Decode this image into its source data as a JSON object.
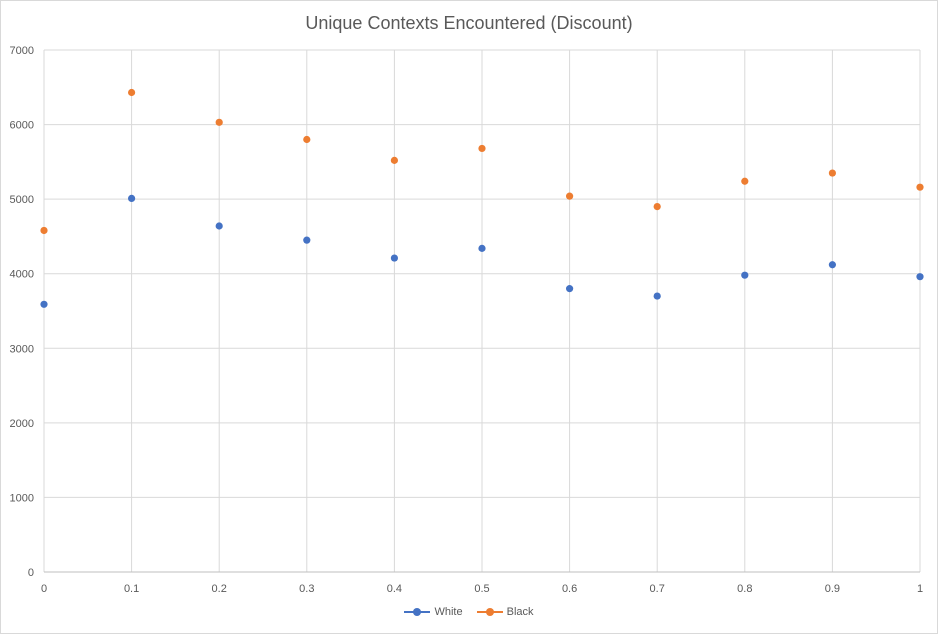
{
  "chart_data": {
    "type": "scatter",
    "title": "Unique Contexts Encountered (Discount)",
    "xlabel": "",
    "ylabel": "",
    "xlim": [
      0,
      1
    ],
    "ylim": [
      0,
      7000
    ],
    "x_ticks": [
      "0",
      "0.1",
      "0.2",
      "0.3",
      "0.4",
      "0.5",
      "0.6",
      "0.7",
      "0.8",
      "0.9",
      "1"
    ],
    "y_ticks": [
      "0",
      "1000",
      "2000",
      "3000",
      "4000",
      "5000",
      "6000",
      "7000"
    ],
    "grid": true,
    "legend_position": "bottom",
    "x": [
      0,
      0.1,
      0.2,
      0.3,
      0.4,
      0.5,
      0.6,
      0.7,
      0.8,
      0.9,
      1
    ],
    "series": [
      {
        "name": "White",
        "color": "#4472c4",
        "values": [
          3590,
          5010,
          4640,
          4450,
          4210,
          4340,
          3800,
          3700,
          3980,
          4120,
          3960
        ]
      },
      {
        "name": "Black",
        "color": "#ed7d31",
        "values": [
          4580,
          6430,
          6030,
          5800,
          5520,
          5680,
          5040,
          4900,
          5240,
          5350,
          5160
        ]
      }
    ]
  }
}
